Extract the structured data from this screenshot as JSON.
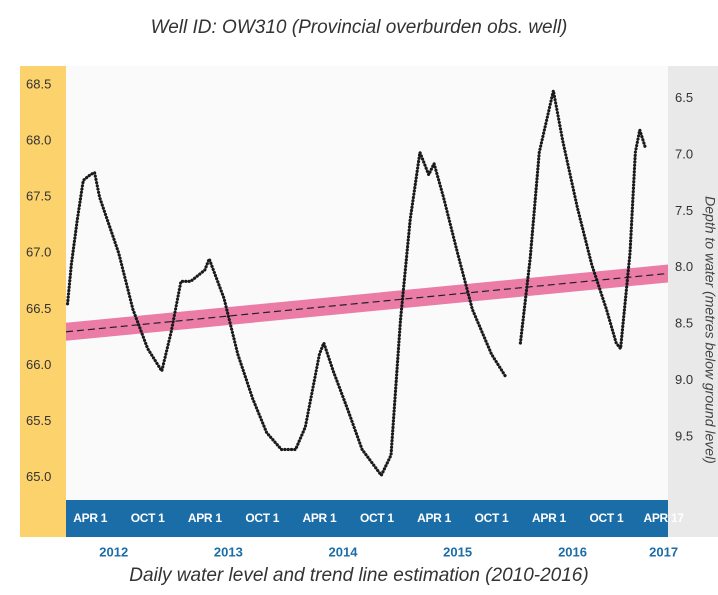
{
  "chart_data": {
    "type": "line",
    "title": "Well ID: OW310 (Provincial overburden obs. well)",
    "caption": "Daily water level and trend line estimation  (2010-2016)",
    "y2label": "Depth to water (metres below ground level)",
    "xlim": [
      "2012-01-15",
      "2017-04-15"
    ],
    "ylim": [
      64.8,
      68.67
    ],
    "yticks": [
      {
        "value": 65,
        "label": "65.0"
      },
      65.5,
      {
        "value": 66,
        "label": "66.0"
      },
      66.5,
      {
        "value": 67,
        "label": "67.0"
      },
      67.5,
      {
        "value": 68,
        "label": "68.0"
      },
      68.5
    ],
    "y2lim": [
      10.06,
      6.21
    ],
    "y2ticks": [
      6.5,
      {
        "value": 7,
        "label": "7.0"
      },
      7.5,
      {
        "value": 8,
        "label": "8.0"
      },
      8.5,
      {
        "value": 9,
        "label": "9.0"
      },
      9.5
    ],
    "xticks": [
      {
        "value": "2012-04-01",
        "label": "APR 1"
      },
      {
        "value": "2012-10-01",
        "label": "OCT 1"
      },
      {
        "value": "2013-04-01",
        "label": "APR 1"
      },
      {
        "value": "2013-10-01",
        "label": "OCT 1"
      },
      {
        "value": "2014-04-01",
        "label": "APR 1"
      },
      {
        "value": "2014-10-01",
        "label": "OCT 1"
      },
      {
        "value": "2015-04-01",
        "label": "APR 1"
      },
      {
        "value": "2015-10-01",
        "label": "OCT 1"
      },
      {
        "value": "2016-04-01",
        "label": "APR 1"
      },
      {
        "value": "2016-10-01",
        "label": "OCT 1"
      },
      {
        "value": "2017-04-01",
        "label": "APR 17"
      }
    ],
    "year_labels": [
      {
        "value": "2012-06-15",
        "label": "2012"
      },
      {
        "value": "2013-06-15",
        "label": "2013"
      },
      {
        "value": "2014-06-15",
        "label": "2014"
      },
      {
        "value": "2015-06-15",
        "label": "2015"
      },
      {
        "value": "2016-06-15",
        "label": "2016"
      },
      {
        "value": "2017-04-01",
        "label": "2017"
      }
    ],
    "grid": false,
    "series": [
      {
        "color": "#1a1a1a",
        "x": [
          "2012-01-20",
          "2012-02-01",
          "2012-02-20",
          "2012-03-10",
          "2012-04-01",
          "2012-04-15",
          "2012-05-01",
          "2012-07-01",
          "2012-08-15",
          "2012-10-01",
          "2012-11-15",
          "2012-12-15",
          "2013-01-15",
          "2013-02-15",
          "2013-04-01",
          "2013-04-15",
          "2013-06-01",
          "2013-07-15",
          "2013-09-01",
          "2013-10-15",
          "2013-12-01",
          "2014-01-15",
          "2014-02-15",
          "2014-04-01",
          "2014-04-15",
          "2014-05-15",
          "2014-07-01",
          "2014-08-15",
          "2014-10-15",
          "2014-11-15",
          "2014-12-15",
          "2015-01-15",
          "2015-02-15",
          "2015-03-15",
          "2015-04-01",
          "2015-05-01",
          "2015-06-15",
          "2015-08-01",
          "2015-10-01",
          "2015-11-15",
          "2015-12-10",
          "2016-01-01",
          "2016-02-01",
          "2016-03-01",
          "2016-04-15",
          "2016-05-15",
          "2016-07-01",
          "2016-08-15",
          "2016-10-01",
          "2016-11-01",
          "2016-11-15",
          "2016-12-15",
          "2017-01-01",
          "2017-01-15",
          "2017-02-01"
        ],
        "values": [
          66.55,
          66.9,
          67.3,
          67.65,
          67.7,
          67.72,
          67.5,
          67.0,
          66.5,
          66.15,
          65.95,
          66.3,
          66.75,
          66.75,
          66.85,
          66.95,
          66.6,
          66.1,
          65.7,
          65.4,
          65.25,
          65.25,
          65.45,
          66.1,
          66.2,
          65.95,
          65.6,
          65.25,
          65.02,
          65.2,
          66.4,
          67.3,
          67.9,
          67.7,
          67.8,
          67.5,
          67.0,
          66.5,
          66.1,
          65.9,
          null,
          66.2,
          66.95,
          67.9,
          68.45,
          68.0,
          67.4,
          66.9,
          66.5,
          66.2,
          66.15,
          67.0,
          67.9,
          68.1,
          67.95
        ]
      }
    ],
    "trend": {
      "color": "#e5528a",
      "x": [
        "2012-01-15",
        "2017-04-15"
      ],
      "values": [
        66.3,
        66.82
      ],
      "lower": [
        66.22,
        66.74
      ],
      "upper": [
        66.38,
        66.9
      ]
    }
  }
}
